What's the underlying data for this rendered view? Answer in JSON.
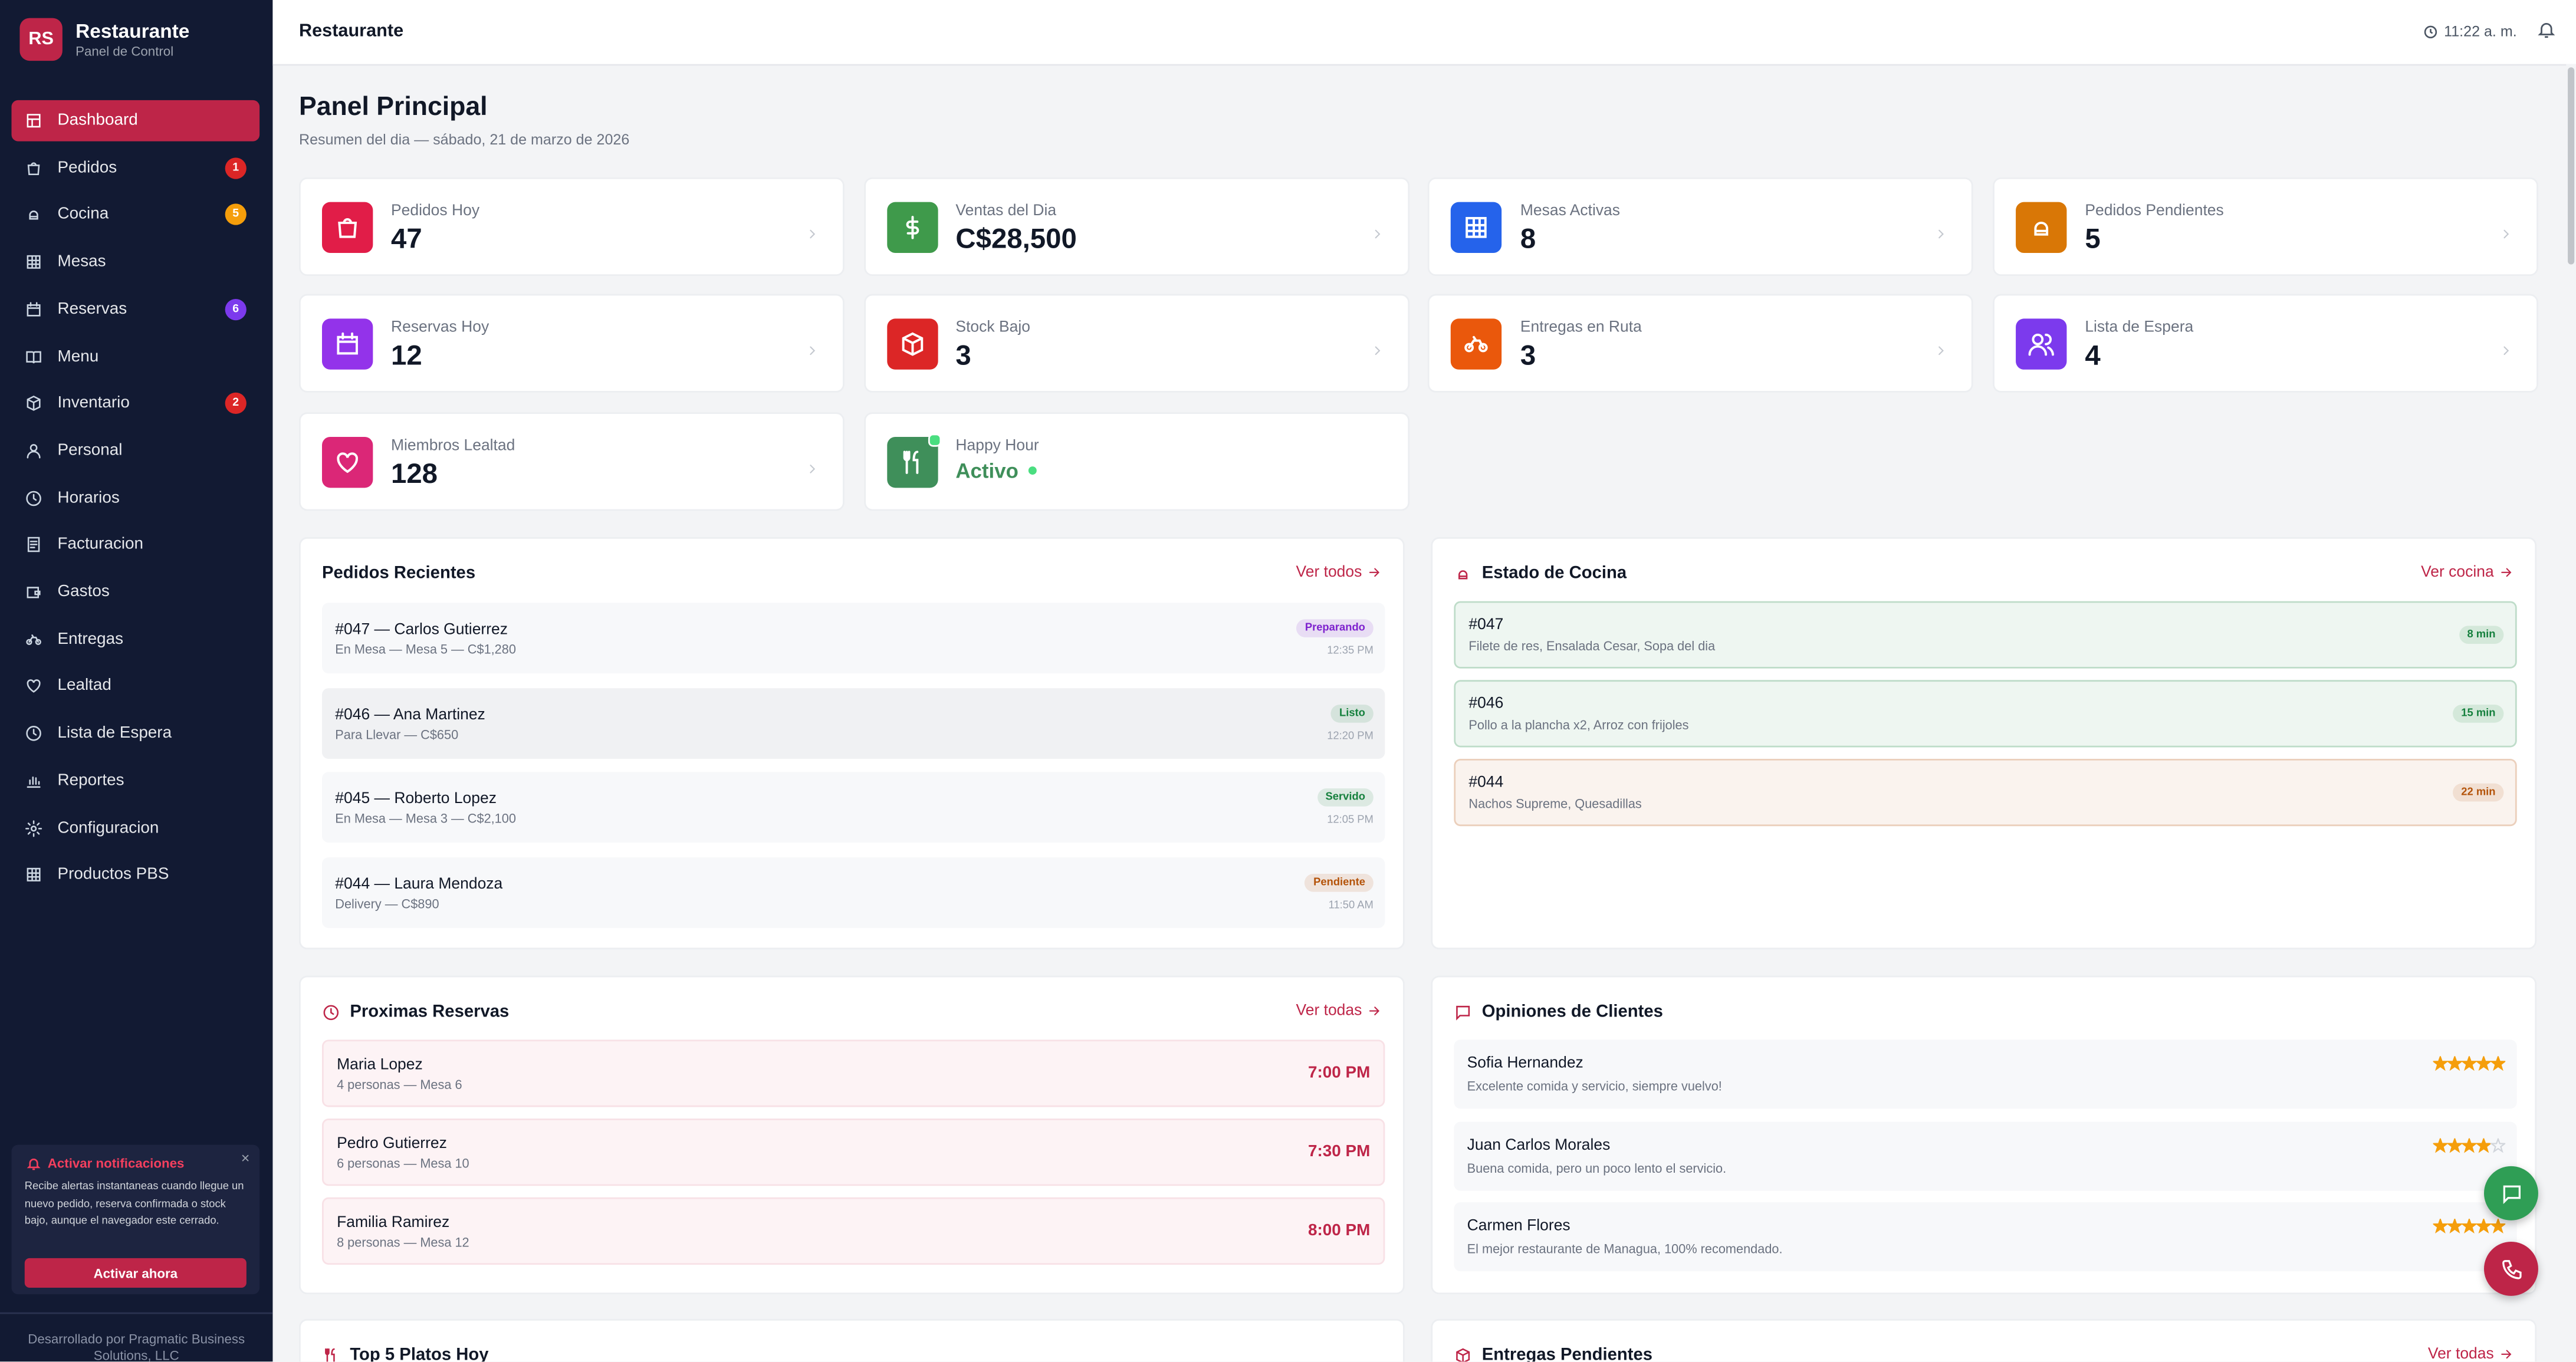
{
  "sidebar": {
    "initials": "RS",
    "title": "Restaurante",
    "subtitle": "Panel de Control",
    "nav": [
      {
        "label": "Dashboard"
      },
      {
        "label": "Pedidos",
        "badge": "1",
        "color": "#dc2626"
      },
      {
        "label": "Cocina",
        "badge": "5",
        "color": "#f59e0b"
      },
      {
        "label": "Mesas"
      },
      {
        "label": "Reservas",
        "badge": "6",
        "color": "#7c3aed"
      },
      {
        "label": "Menu"
      },
      {
        "label": "Inventario",
        "badge": "2",
        "color": "#dc2626"
      },
      {
        "label": "Personal"
      },
      {
        "label": "Horarios"
      },
      {
        "label": "Facturacion"
      },
      {
        "label": "Gastos"
      },
      {
        "label": "Entregas"
      },
      {
        "label": "Lealtad"
      },
      {
        "label": "Lista de Espera"
      },
      {
        "label": "Reportes"
      },
      {
        "label": "Configuracion"
      },
      {
        "label": "Productos PBS"
      }
    ],
    "notification": {
      "title": "Activar notificaciones",
      "text": "Recibe alertas instantaneas cuando llegue un nuevo pedido, reserva confirmada o stock bajo, aunque el navegador este cerrado.",
      "button": "Activar ahora"
    },
    "footer": "Desarrollado por Pragmatic Business Solutions, LLC"
  },
  "topbar": {
    "title": "Restaurante",
    "time": "11:22 a. m."
  },
  "header": {
    "title": "Panel Principal",
    "subtitle": "Resumen del dia — sábado, 21 de marzo de 2026"
  },
  "stats": [
    {
      "label": "Pedidos Hoy",
      "value": "47",
      "color": "#e11d48"
    },
    {
      "label": "Ventas del Dia",
      "value": "C$28,500",
      "color": "#3f9a4b"
    },
    {
      "label": "Mesas Activas",
      "value": "8",
      "color": "#2563eb"
    },
    {
      "label": "Pedidos Pendientes",
      "value": "5",
      "color": "#d97706"
    },
    {
      "label": "Reservas Hoy",
      "value": "12",
      "color": "#9333ea"
    },
    {
      "label": "Stock Bajo",
      "value": "3",
      "color": "#dc2626"
    },
    {
      "label": "Entregas en Ruta",
      "value": "3",
      "color": "#ea580c"
    },
    {
      "label": "Lista de Espera",
      "value": "4",
      "color": "#7c3aed"
    },
    {
      "label": "Miembros Lealtad",
      "value": "128",
      "color": "#db2777"
    },
    {
      "label": "Happy Hour",
      "value": "Activo",
      "color": "#3f8f5a"
    }
  ],
  "recent_orders": {
    "title": "Pedidos Recientes",
    "link": "Ver todos",
    "items": [
      {
        "title": "#047 — Carlos Gutierrez",
        "detail": "En Mesa — Mesa 5 — C$1,280",
        "status": "Preparando",
        "time": "12:35 PM",
        "color": "#7e22ce"
      },
      {
        "title": "#046 — Ana Martinez",
        "detail": "Para Llevar — C$650",
        "status": "Listo",
        "time": "12:20 PM",
        "color": "#15803d"
      },
      {
        "title": "#045 — Roberto Lopez",
        "detail": "En Mesa — Mesa 3 — C$2,100",
        "status": "Servido",
        "time": "12:05 PM",
        "color": "#15803d"
      },
      {
        "title": "#044 — Laura Mendoza",
        "detail": "Delivery — C$890",
        "status": "Pendiente",
        "time": "11:50 AM",
        "color": "#b45309"
      }
    ]
  },
  "kitchen": {
    "title": "Estado de Cocina",
    "link": "Ver cocina",
    "items": [
      {
        "order": "#047",
        "dishes": "Filete de res, Ensalada Cesar, Sopa del dia",
        "time": "8 min",
        "color": "#15803d"
      },
      {
        "order": "#046",
        "dishes": "Pollo a la plancha x2, Arroz con frijoles",
        "time": "15 min",
        "color": "#15803d"
      },
      {
        "order": "#044",
        "dishes": "Nachos Supreme, Quesadillas",
        "time": "22 min",
        "color": "#b45309"
      }
    ]
  },
  "reservations": {
    "title": "Proximas Reservas",
    "link": "Ver todas",
    "items": [
      {
        "name": "Maria Lopez",
        "detail": "4 personas — Mesa 6",
        "time": "7:00 PM"
      },
      {
        "name": "Pedro Gutierrez",
        "detail": "6 personas — Mesa 10",
        "time": "7:30 PM"
      },
      {
        "name": "Familia Ramirez",
        "detail": "8 personas — Mesa 12",
        "time": "8:00 PM"
      }
    ]
  },
  "reviews": {
    "title": "Opiniones de Clientes",
    "items": [
      {
        "name": "Sofia Hernandez",
        "text": "Excelente comida y servicio, siempre vuelvo!",
        "rating": 5
      },
      {
        "name": "Juan Carlos Morales",
        "text": "Buena comida, pero un poco lento el servicio.",
        "rating": 4
      },
      {
        "name": "Carmen Flores",
        "text": "El mejor restaurante de Managua, 100% recomendado.",
        "rating": 5
      }
    ]
  },
  "top_dishes": {
    "title": "Top 5 Platos Hoy"
  },
  "deliveries": {
    "title": "Entregas Pendientes",
    "link": "Ver todas"
  }
}
